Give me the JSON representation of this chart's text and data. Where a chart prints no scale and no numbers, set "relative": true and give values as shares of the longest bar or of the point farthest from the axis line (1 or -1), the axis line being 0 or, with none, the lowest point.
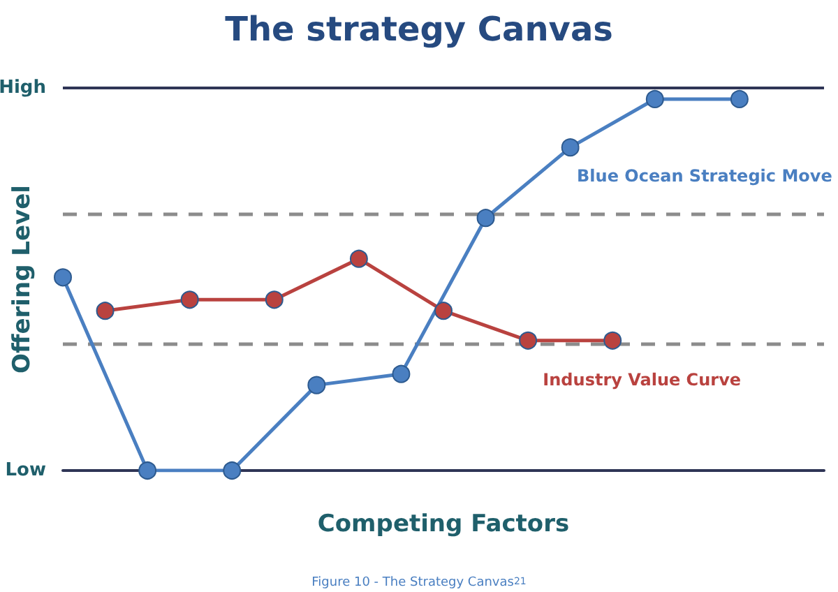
{
  "chart_data": {
    "type": "line",
    "title": "The strategy Canvas",
    "xlabel": "Competing Factors",
    "ylabel": "Offering Level",
    "annotations": [
      "Figure 10 - The Strategy Canvas$^{21}$"
    ],
    "categories": [
      null,
      null,
      null,
      null,
      null,
      null,
      null,
      null,
      null,
      null,
      null,
      null,
      null,
      null,
      null,
      null,
      null,
      null,
      null
    ],
    "relative": true,
    "marker": "circle",
    "line_style": "solid",
    "ref_lines": [
      {
        "axis": "y",
        "value": 1.03,
        "label": "High",
        "color": "#2f3556",
        "line_style": "solid"
      },
      {
        "axis": "y",
        "value": 0.69,
        "label": null,
        "color": "#8c8c8c",
        "line_style": "dashed"
      },
      {
        "axis": "y",
        "value": 0.34,
        "label": null,
        "color": "#8c8c8c",
        "line_style": "dashed"
      },
      {
        "axis": "y",
        "value": 0,
        "label": "Low",
        "color": "#2f3556",
        "line_style": "solid"
      }
    ],
    "series": [
      {
        "name": "Blue Ocean Strategic Move",
        "color": "#4a7fc1",
        "values": [
          0.52,
          null,
          0,
          null,
          0,
          null,
          0.23,
          null,
          0.26,
          null,
          0.68,
          null,
          0.87,
          null,
          1,
          null,
          1,
          null,
          null
        ]
      },
      {
        "name": "Industry Value Curve",
        "color": "#b9423f",
        "values": [
          null,
          0.43,
          null,
          0.46,
          null,
          0.46,
          null,
          0.57,
          null,
          0.43,
          null,
          0.35,
          null,
          0.35,
          null,
          null,
          null,
          null,
          null
        ]
      }
    ]
  }
}
